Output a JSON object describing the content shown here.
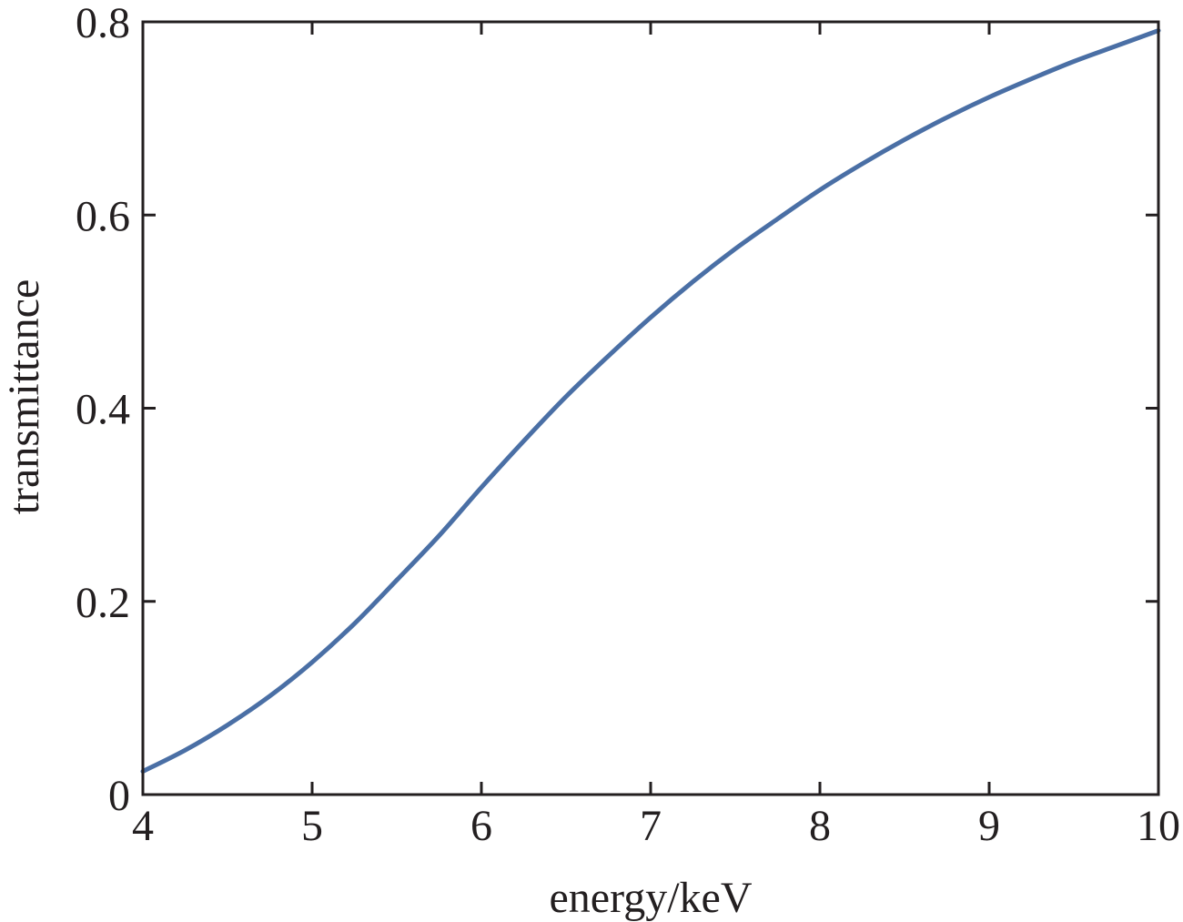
{
  "chart_data": {
    "type": "line",
    "title": "",
    "xlabel": "energy/keV",
    "ylabel": "transmittance",
    "xlim": [
      4,
      10
    ],
    "ylim": [
      0,
      0.8
    ],
    "xticks": [
      4,
      5,
      6,
      7,
      8,
      9,
      10
    ],
    "xtick_labels": [
      "4",
      "5",
      "6",
      "7",
      "8",
      "9",
      "10"
    ],
    "yticks": [
      0,
      0.2,
      0.4,
      0.6,
      0.8
    ],
    "ytick_labels": [
      "0",
      "0.2",
      "0.4",
      "0.6",
      "0.8"
    ],
    "grid": false,
    "series": [
      {
        "color": "#4a6fa5",
        "x": [
          4.0,
          4.25,
          4.5,
          4.75,
          5.0,
          5.25,
          5.5,
          5.75,
          6.0,
          6.25,
          6.5,
          6.75,
          7.0,
          7.25,
          7.5,
          7.75,
          8.0,
          8.25,
          8.5,
          8.75,
          9.0,
          9.25,
          9.5,
          9.75,
          10.0
        ],
        "y": [
          0.024,
          0.046,
          0.072,
          0.102,
          0.137,
          0.177,
          0.222,
          0.268,
          0.318,
          0.366,
          0.412,
          0.454,
          0.494,
          0.531,
          0.565,
          0.596,
          0.626,
          0.653,
          0.678,
          0.701,
          0.722,
          0.741,
          0.759,
          0.775,
          0.791
        ]
      }
    ]
  }
}
